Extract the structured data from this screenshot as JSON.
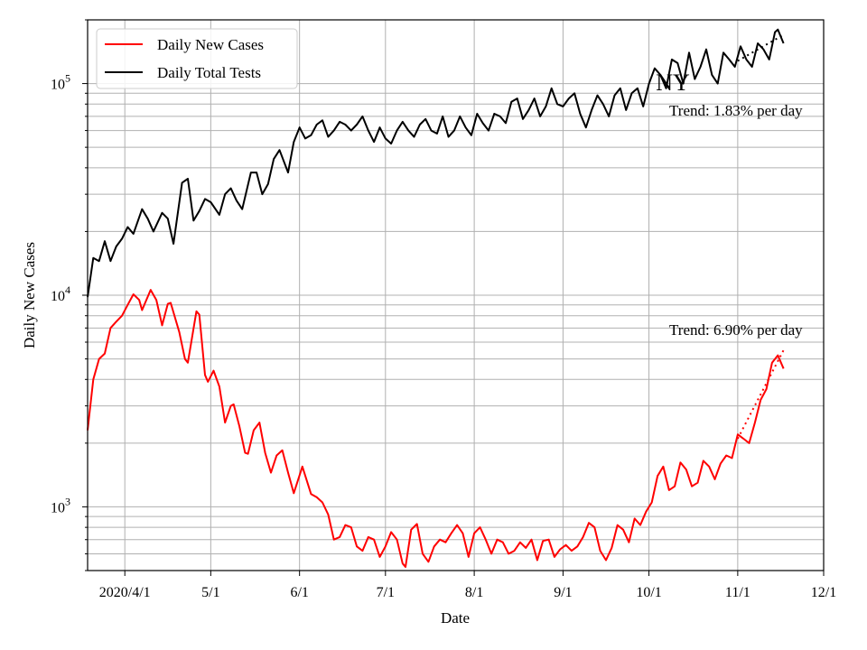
{
  "chart_data": {
    "type": "line",
    "title": "NY",
    "xlabel": "Date",
    "ylabel": "Daily New Cases",
    "y_scale": "log",
    "ylim": [
      500,
      200000
    ],
    "xlim": [
      "2020-03-19",
      "2020-12-01"
    ],
    "grid": true,
    "legend_position": "top-left",
    "x_ticks": [
      {
        "date": "2020-04-01",
        "label": "2020/4/1"
      },
      {
        "date": "2020-05-01",
        "label": "5/1"
      },
      {
        "date": "2020-06-01",
        "label": "6/1"
      },
      {
        "date": "2020-07-01",
        "label": "7/1"
      },
      {
        "date": "2020-08-01",
        "label": "8/1"
      },
      {
        "date": "2020-09-01",
        "label": "9/1"
      },
      {
        "date": "2020-10-01",
        "label": "10/1"
      },
      {
        "date": "2020-11-01",
        "label": "11/1"
      },
      {
        "date": "2020-12-01",
        "label": "12/1"
      }
    ],
    "y_ticks": [
      {
        "value": 1000,
        "label_base": "10",
        "label_exp": "3"
      },
      {
        "value": 10000,
        "label_base": "10",
        "label_exp": "4"
      },
      {
        "value": 100000,
        "label_base": "10",
        "label_exp": "5"
      }
    ],
    "series": [
      {
        "name": "Daily New Cases",
        "color": "#ff0000",
        "points": [
          [
            "2020-03-19",
            2300
          ],
          [
            "2020-03-21",
            4000
          ],
          [
            "2020-03-23",
            5000
          ],
          [
            "2020-03-25",
            5300
          ],
          [
            "2020-03-27",
            7000
          ],
          [
            "2020-03-29",
            7500
          ],
          [
            "2020-03-31",
            8000
          ],
          [
            "2020-04-02",
            9000
          ],
          [
            "2020-04-04",
            10100
          ],
          [
            "2020-04-06",
            9500
          ],
          [
            "2020-04-07",
            8500
          ],
          [
            "2020-04-10",
            10600
          ],
          [
            "2020-04-12",
            9500
          ],
          [
            "2020-04-14",
            7200
          ],
          [
            "2020-04-16",
            9100
          ],
          [
            "2020-04-17",
            9200
          ],
          [
            "2020-04-20",
            6700
          ],
          [
            "2020-04-22",
            5000
          ],
          [
            "2020-04-23",
            4800
          ],
          [
            "2020-04-26",
            8400
          ],
          [
            "2020-04-27",
            8100
          ],
          [
            "2020-04-29",
            4200
          ],
          [
            "2020-04-30",
            3900
          ],
          [
            "2020-05-02",
            4400
          ],
          [
            "2020-05-04",
            3700
          ],
          [
            "2020-05-06",
            2500
          ],
          [
            "2020-05-08",
            3000
          ],
          [
            "2020-05-09",
            3050
          ],
          [
            "2020-05-11",
            2400
          ],
          [
            "2020-05-13",
            1800
          ],
          [
            "2020-05-14",
            1780
          ],
          [
            "2020-05-16",
            2300
          ],
          [
            "2020-05-18",
            2500
          ],
          [
            "2020-05-20",
            1800
          ],
          [
            "2020-05-22",
            1450
          ],
          [
            "2020-05-24",
            1750
          ],
          [
            "2020-05-26",
            1850
          ],
          [
            "2020-05-28",
            1450
          ],
          [
            "2020-05-30",
            1160
          ],
          [
            "2020-06-02",
            1550
          ],
          [
            "2020-06-05",
            1150
          ],
          [
            "2020-06-07",
            1110
          ],
          [
            "2020-06-09",
            1050
          ],
          [
            "2020-06-11",
            920
          ],
          [
            "2020-06-13",
            700
          ],
          [
            "2020-06-15",
            720
          ],
          [
            "2020-06-17",
            820
          ],
          [
            "2020-06-19",
            800
          ],
          [
            "2020-06-21",
            650
          ],
          [
            "2020-06-23",
            620
          ],
          [
            "2020-06-25",
            720
          ],
          [
            "2020-06-27",
            700
          ],
          [
            "2020-06-29",
            580
          ],
          [
            "2020-07-01",
            650
          ],
          [
            "2020-07-03",
            760
          ],
          [
            "2020-07-05",
            700
          ],
          [
            "2020-07-07",
            540
          ],
          [
            "2020-07-08",
            520
          ],
          [
            "2020-07-10",
            780
          ],
          [
            "2020-07-12",
            830
          ],
          [
            "2020-07-14",
            600
          ],
          [
            "2020-07-16",
            550
          ],
          [
            "2020-07-18",
            650
          ],
          [
            "2020-07-20",
            700
          ],
          [
            "2020-07-22",
            680
          ],
          [
            "2020-07-24",
            750
          ],
          [
            "2020-07-26",
            820
          ],
          [
            "2020-07-28",
            750
          ],
          [
            "2020-07-30",
            580
          ],
          [
            "2020-08-01",
            750
          ],
          [
            "2020-08-03",
            800
          ],
          [
            "2020-08-05",
            700
          ],
          [
            "2020-08-07",
            600
          ],
          [
            "2020-08-09",
            700
          ],
          [
            "2020-08-11",
            680
          ],
          [
            "2020-08-13",
            600
          ],
          [
            "2020-08-15",
            620
          ],
          [
            "2020-08-17",
            680
          ],
          [
            "2020-08-19",
            640
          ],
          [
            "2020-08-21",
            700
          ],
          [
            "2020-08-23",
            560
          ],
          [
            "2020-08-25",
            690
          ],
          [
            "2020-08-27",
            700
          ],
          [
            "2020-08-29",
            580
          ],
          [
            "2020-08-31",
            630
          ],
          [
            "2020-09-02",
            660
          ],
          [
            "2020-09-04",
            620
          ],
          [
            "2020-09-06",
            650
          ],
          [
            "2020-09-08",
            720
          ],
          [
            "2020-09-10",
            840
          ],
          [
            "2020-09-12",
            800
          ],
          [
            "2020-09-14",
            620
          ],
          [
            "2020-09-16",
            560
          ],
          [
            "2020-09-18",
            640
          ],
          [
            "2020-09-20",
            820
          ],
          [
            "2020-09-22",
            780
          ],
          [
            "2020-09-24",
            680
          ],
          [
            "2020-09-26",
            880
          ],
          [
            "2020-09-28",
            820
          ],
          [
            "2020-09-30",
            950
          ],
          [
            "2020-10-02",
            1050
          ],
          [
            "2020-10-04",
            1400
          ],
          [
            "2020-10-06",
            1550
          ],
          [
            "2020-10-08",
            1200
          ],
          [
            "2020-10-10",
            1250
          ],
          [
            "2020-10-12",
            1620
          ],
          [
            "2020-10-14",
            1500
          ],
          [
            "2020-10-16",
            1250
          ],
          [
            "2020-10-18",
            1300
          ],
          [
            "2020-10-20",
            1650
          ],
          [
            "2020-10-22",
            1550
          ],
          [
            "2020-10-24",
            1350
          ],
          [
            "2020-10-26",
            1600
          ],
          [
            "2020-10-28",
            1750
          ],
          [
            "2020-10-30",
            1700
          ],
          [
            "2020-11-01",
            2200
          ],
          [
            "2020-11-03",
            2100
          ],
          [
            "2020-11-05",
            2000
          ],
          [
            "2020-11-07",
            2500
          ],
          [
            "2020-11-09",
            3200
          ],
          [
            "2020-11-11",
            3600
          ],
          [
            "2020-11-13",
            4800
          ],
          [
            "2020-11-15",
            5200
          ],
          [
            "2020-11-17",
            4500
          ]
        ]
      },
      {
        "name": "Daily Total Tests",
        "color": "#000000",
        "points": [
          [
            "2020-03-19",
            9800
          ],
          [
            "2020-03-21",
            15000
          ],
          [
            "2020-03-23",
            14500
          ],
          [
            "2020-03-25",
            18000
          ],
          [
            "2020-03-27",
            14500
          ],
          [
            "2020-03-29",
            17000
          ],
          [
            "2020-03-31",
            18500
          ],
          [
            "2020-04-02",
            21000
          ],
          [
            "2020-04-04",
            19500
          ],
          [
            "2020-04-07",
            25500
          ],
          [
            "2020-04-09",
            23000
          ],
          [
            "2020-04-11",
            20000
          ],
          [
            "2020-04-14",
            24500
          ],
          [
            "2020-04-16",
            23000
          ],
          [
            "2020-04-18",
            17500
          ],
          [
            "2020-04-21",
            34000
          ],
          [
            "2020-04-23",
            35500
          ],
          [
            "2020-04-25",
            22500
          ],
          [
            "2020-04-27",
            25000
          ],
          [
            "2020-04-29",
            28500
          ],
          [
            "2020-05-01",
            27500
          ],
          [
            "2020-05-04",
            24000
          ],
          [
            "2020-05-06",
            30000
          ],
          [
            "2020-05-08",
            32000
          ],
          [
            "2020-05-10",
            28000
          ],
          [
            "2020-05-12",
            25500
          ],
          [
            "2020-05-15",
            38000
          ],
          [
            "2020-05-17",
            38000
          ],
          [
            "2020-05-19",
            30000
          ],
          [
            "2020-05-21",
            33500
          ],
          [
            "2020-05-23",
            44000
          ],
          [
            "2020-05-25",
            48500
          ],
          [
            "2020-05-28",
            38000
          ],
          [
            "2020-05-30",
            53000
          ],
          [
            "2020-06-01",
            62000
          ],
          [
            "2020-06-03",
            55000
          ],
          [
            "2020-06-05",
            57000
          ],
          [
            "2020-06-07",
            64000
          ],
          [
            "2020-06-09",
            67000
          ],
          [
            "2020-06-11",
            56000
          ],
          [
            "2020-06-13",
            60000
          ],
          [
            "2020-06-15",
            66000
          ],
          [
            "2020-06-17",
            64000
          ],
          [
            "2020-06-19",
            60000
          ],
          [
            "2020-06-21",
            64000
          ],
          [
            "2020-06-23",
            70000
          ],
          [
            "2020-06-25",
            60000
          ],
          [
            "2020-06-27",
            53000
          ],
          [
            "2020-06-29",
            62000
          ],
          [
            "2020-07-01",
            55000
          ],
          [
            "2020-07-03",
            52000
          ],
          [
            "2020-07-05",
            60000
          ],
          [
            "2020-07-07",
            66000
          ],
          [
            "2020-07-09",
            60000
          ],
          [
            "2020-07-11",
            56000
          ],
          [
            "2020-07-13",
            64000
          ],
          [
            "2020-07-15",
            68000
          ],
          [
            "2020-07-17",
            60000
          ],
          [
            "2020-07-19",
            58000
          ],
          [
            "2020-07-21",
            70000
          ],
          [
            "2020-07-23",
            56000
          ],
          [
            "2020-07-25",
            60000
          ],
          [
            "2020-07-27",
            70000
          ],
          [
            "2020-07-29",
            62000
          ],
          [
            "2020-07-31",
            57000
          ],
          [
            "2020-08-02",
            72000
          ],
          [
            "2020-08-04",
            65000
          ],
          [
            "2020-08-06",
            60000
          ],
          [
            "2020-08-08",
            72000
          ],
          [
            "2020-08-10",
            70000
          ],
          [
            "2020-08-12",
            65000
          ],
          [
            "2020-08-14",
            82000
          ],
          [
            "2020-08-16",
            85000
          ],
          [
            "2020-08-18",
            68000
          ],
          [
            "2020-08-20",
            75000
          ],
          [
            "2020-08-22",
            85000
          ],
          [
            "2020-08-24",
            70000
          ],
          [
            "2020-08-26",
            78000
          ],
          [
            "2020-08-28",
            95000
          ],
          [
            "2020-08-30",
            80000
          ],
          [
            "2020-09-01",
            78000
          ],
          [
            "2020-09-03",
            85000
          ],
          [
            "2020-09-05",
            90000
          ],
          [
            "2020-09-07",
            72000
          ],
          [
            "2020-09-09",
            62000
          ],
          [
            "2020-09-11",
            75000
          ],
          [
            "2020-09-13",
            88000
          ],
          [
            "2020-09-15",
            80000
          ],
          [
            "2020-09-17",
            70000
          ],
          [
            "2020-09-19",
            88000
          ],
          [
            "2020-09-21",
            95000
          ],
          [
            "2020-09-23",
            75000
          ],
          [
            "2020-09-25",
            90000
          ],
          [
            "2020-09-27",
            95000
          ],
          [
            "2020-09-29",
            78000
          ],
          [
            "2020-10-01",
            100000
          ],
          [
            "2020-10-03",
            118000
          ],
          [
            "2020-10-05",
            110000
          ],
          [
            "2020-10-07",
            95000
          ],
          [
            "2020-10-09",
            130000
          ],
          [
            "2020-10-11",
            125000
          ],
          [
            "2020-10-13",
            100000
          ],
          [
            "2020-10-15",
            140000
          ],
          [
            "2020-10-17",
            105000
          ],
          [
            "2020-10-19",
            120000
          ],
          [
            "2020-10-21",
            145000
          ],
          [
            "2020-10-23",
            110000
          ],
          [
            "2020-10-25",
            100000
          ],
          [
            "2020-10-27",
            140000
          ],
          [
            "2020-10-29",
            130000
          ],
          [
            "2020-10-31",
            120000
          ],
          [
            "2020-11-02",
            150000
          ],
          [
            "2020-11-04",
            130000
          ],
          [
            "2020-11-06",
            120000
          ],
          [
            "2020-11-08",
            155000
          ],
          [
            "2020-11-10",
            145000
          ],
          [
            "2020-11-12",
            130000
          ],
          [
            "2020-11-14",
            175000
          ],
          [
            "2020-11-15",
            180000
          ],
          [
            "2020-11-17",
            155000
          ]
        ]
      }
    ],
    "trend_lines": [
      {
        "series": "Daily New Cases",
        "color": "#ff0000",
        "start": [
          "2020-11-01",
          2100
        ],
        "end": [
          "2020-11-17",
          5500
        ],
        "label": "Trend: 6.90% per day"
      },
      {
        "series": "Daily Total Tests",
        "color": "#000000",
        "start": [
          "2020-11-01",
          128000
        ],
        "end": [
          "2020-11-17",
          170000
        ],
        "label": "Trend: 1.83% per day"
      }
    ]
  }
}
